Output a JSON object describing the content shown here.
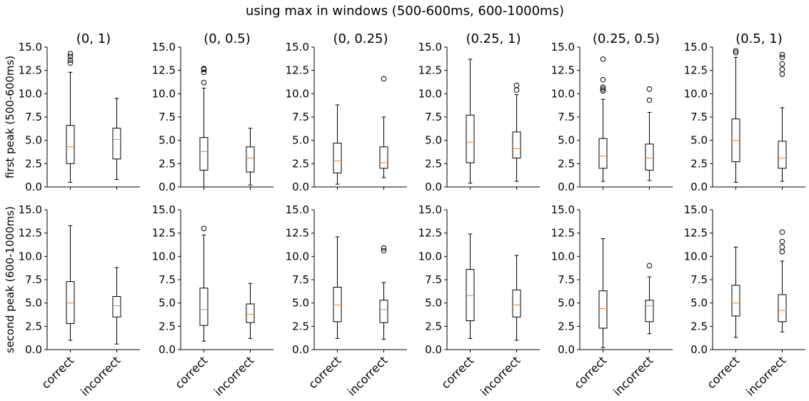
{
  "figure": {
    "suptitle": "using max in windows (500-600ms, 600-1000ms)"
  },
  "chart_data": {
    "type": "boxplot",
    "categories": [
      "correct",
      "incorrect"
    ],
    "yticks": [
      "0.0",
      "2.5",
      "5.0",
      "7.5",
      "10.0",
      "12.5",
      "15.0"
    ],
    "ylim": [
      0,
      15
    ],
    "grid": false,
    "column_titles": [
      "(0, 1)",
      "(0, 0.5)",
      "(0, 0.25)",
      "(0.25, 1)",
      "(0.25, 0.5)",
      "(0.5, 1)"
    ],
    "row_ylabels": [
      "first peak (500-600ms)",
      "second peak (600-1000ms)"
    ],
    "median_color": "#ff7f0e",
    "box_color": "#000000",
    "panels": [
      {
        "row": 0,
        "col": 0,
        "boxes": [
          {
            "category": "correct",
            "whislo": 0.5,
            "q1": 2.5,
            "med": 4.3,
            "q3": 6.6,
            "whishi": 12.3,
            "fliers": [
              13.3,
              13.6,
              14.0,
              14.3
            ]
          },
          {
            "category": "incorrect",
            "whislo": 0.8,
            "q1": 3.0,
            "med": 5.1,
            "q3": 6.3,
            "whishi": 9.5,
            "fliers": []
          }
        ]
      },
      {
        "row": 0,
        "col": 1,
        "boxes": [
          {
            "category": "correct",
            "whislo": 0.0,
            "q1": 1.8,
            "med": 3.8,
            "q3": 5.3,
            "whishi": 10.6,
            "fliers": [
              11.2,
              12.3,
              12.6,
              12.7
            ]
          },
          {
            "category": "incorrect",
            "whislo": 0.2,
            "q1": 1.6,
            "med": 3.1,
            "q3": 4.3,
            "whishi": 6.3,
            "fliers": []
          }
        ]
      },
      {
        "row": 0,
        "col": 2,
        "boxes": [
          {
            "category": "correct",
            "whislo": 0.3,
            "q1": 1.5,
            "med": 2.8,
            "q3": 4.7,
            "whishi": 8.8,
            "fliers": []
          },
          {
            "category": "incorrect",
            "whislo": 1.0,
            "q1": 2.0,
            "med": 2.6,
            "q3": 4.3,
            "whishi": 7.5,
            "fliers": [
              11.6
            ]
          }
        ]
      },
      {
        "row": 0,
        "col": 3,
        "boxes": [
          {
            "category": "correct",
            "whislo": 0.4,
            "q1": 2.6,
            "med": 4.8,
            "q3": 7.7,
            "whishi": 13.7,
            "fliers": []
          },
          {
            "category": "incorrect",
            "whislo": 0.6,
            "q1": 3.1,
            "med": 4.1,
            "q3": 5.9,
            "whishi": 9.9,
            "fliers": [
              10.4,
              10.9
            ]
          }
        ]
      },
      {
        "row": 0,
        "col": 4,
        "boxes": [
          {
            "category": "correct",
            "whislo": 0.6,
            "q1": 2.0,
            "med": 3.3,
            "q3": 5.2,
            "whishi": 9.4,
            "fliers": [
              10.3,
              10.5,
              10.7,
              11.5,
              13.7
            ]
          },
          {
            "category": "incorrect",
            "whislo": 0.7,
            "q1": 1.8,
            "med": 3.1,
            "q3": 4.6,
            "whishi": 8.0,
            "fliers": [
              9.3,
              10.5
            ]
          }
        ]
      },
      {
        "row": 0,
        "col": 5,
        "boxes": [
          {
            "category": "correct",
            "whislo": 0.5,
            "q1": 2.7,
            "med": 5.0,
            "q3": 7.3,
            "whishi": 13.9,
            "fliers": [
              14.4,
              14.6
            ]
          },
          {
            "category": "incorrect",
            "whislo": 0.6,
            "q1": 2.0,
            "med": 3.1,
            "q3": 4.9,
            "whishi": 8.5,
            "fliers": [
              12.1,
              12.6,
              13.2,
              13.9,
              14.2
            ]
          }
        ]
      },
      {
        "row": 1,
        "col": 0,
        "boxes": [
          {
            "category": "correct",
            "whislo": 1.0,
            "q1": 2.8,
            "med": 5.0,
            "q3": 7.3,
            "whishi": 13.3,
            "fliers": []
          },
          {
            "category": "incorrect",
            "whislo": 0.6,
            "q1": 3.5,
            "med": 4.7,
            "q3": 5.7,
            "whishi": 8.8,
            "fliers": []
          }
        ]
      },
      {
        "row": 1,
        "col": 1,
        "boxes": [
          {
            "category": "correct",
            "whislo": 0.9,
            "q1": 2.6,
            "med": 4.3,
            "q3": 6.6,
            "whishi": 12.3,
            "fliers": [
              13.0
            ]
          },
          {
            "category": "incorrect",
            "whislo": 1.2,
            "q1": 2.9,
            "med": 3.8,
            "q3": 4.9,
            "whishi": 7.1,
            "fliers": []
          }
        ]
      },
      {
        "row": 1,
        "col": 2,
        "boxes": [
          {
            "category": "correct",
            "whislo": 1.2,
            "q1": 3.0,
            "med": 4.8,
            "q3": 6.7,
            "whishi": 12.1,
            "fliers": []
          },
          {
            "category": "incorrect",
            "whislo": 1.1,
            "q1": 2.9,
            "med": 4.3,
            "q3": 5.3,
            "whishi": 7.2,
            "fliers": [
              10.6,
              10.9
            ]
          }
        ]
      },
      {
        "row": 1,
        "col": 3,
        "boxes": [
          {
            "category": "correct",
            "whislo": 1.2,
            "q1": 3.1,
            "med": 5.8,
            "q3": 8.6,
            "whishi": 12.4,
            "fliers": []
          },
          {
            "category": "incorrect",
            "whislo": 1.0,
            "q1": 3.5,
            "med": 4.8,
            "q3": 6.4,
            "whishi": 10.1,
            "fliers": []
          }
        ]
      },
      {
        "row": 1,
        "col": 4,
        "boxes": [
          {
            "category": "correct",
            "whislo": 0.2,
            "q1": 2.3,
            "med": 4.4,
            "q3": 6.3,
            "whishi": 11.9,
            "fliers": []
          },
          {
            "category": "incorrect",
            "whislo": 1.7,
            "q1": 3.0,
            "med": 4.7,
            "q3": 5.3,
            "whishi": 7.8,
            "fliers": [
              9.0
            ]
          }
        ]
      },
      {
        "row": 1,
        "col": 5,
        "boxes": [
          {
            "category": "correct",
            "whislo": 1.3,
            "q1": 3.6,
            "med": 5.0,
            "q3": 6.9,
            "whishi": 11.0,
            "fliers": []
          },
          {
            "category": "incorrect",
            "whislo": 1.9,
            "q1": 3.0,
            "med": 4.2,
            "q3": 5.9,
            "whishi": 9.5,
            "fliers": [
              10.5,
              11.0,
              11.6,
              12.6
            ]
          }
        ]
      }
    ]
  }
}
